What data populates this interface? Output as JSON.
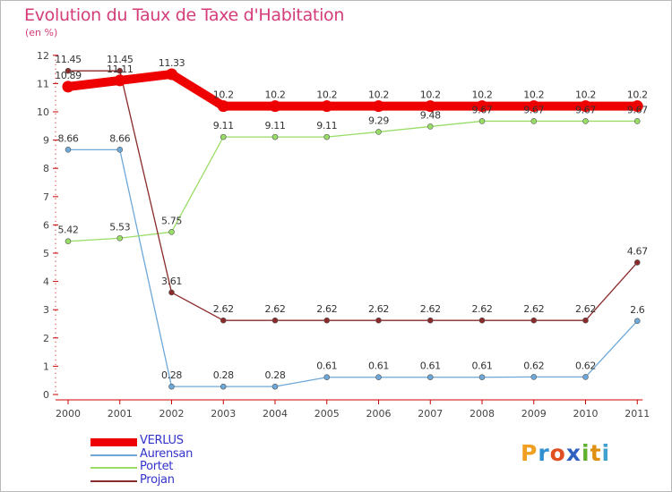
{
  "title": "Evolution du Taux de Taxe d'Habitation",
  "unit_label": "(en %)",
  "brand": {
    "letters": [
      "P",
      "r",
      "o",
      "x",
      "i",
      "t",
      "i"
    ],
    "colors": [
      "#f0a020",
      "#3090d0",
      "#e05020",
      "#3060c0",
      "#60b030",
      "#e09010",
      "#40a0d0"
    ]
  },
  "chart_data": {
    "type": "line",
    "title": "Evolution du Taux de Taxe d'Habitation",
    "ylabel": "(en %)",
    "xlabel": "",
    "x": [
      "2000",
      "2001",
      "2002",
      "2003",
      "2004",
      "2005",
      "2006",
      "2007",
      "2008",
      "2009",
      "2010",
      "2011"
    ],
    "ylim": [
      0,
      12
    ],
    "yticks": [
      "0",
      "1",
      "2",
      "3",
      "4",
      "5",
      "6",
      "7",
      "8",
      "9",
      "10",
      "11",
      "12"
    ],
    "grid": false,
    "legend_position": "bottom-left",
    "series": [
      {
        "name": "VERLUS",
        "color": "#ee0000",
        "values": [
          10.89,
          11.11,
          11.33,
          10.2,
          10.2,
          10.2,
          10.2,
          10.2,
          10.2,
          10.2,
          10.2,
          10.2
        ],
        "labels": [
          "10.89",
          "11.11",
          "11.33",
          "10.2",
          "10.2",
          "10.2",
          "10.2",
          "10.2",
          "10.2",
          "10.2",
          "10.2",
          "10.2"
        ]
      },
      {
        "name": "Aurensan",
        "color": "#6ea8d8",
        "values": [
          8.66,
          8.66,
          0.28,
          0.28,
          0.28,
          0.61,
          0.61,
          0.61,
          0.61,
          0.62,
          0.62,
          2.6
        ],
        "labels": [
          "8.66",
          "8.66",
          "0.28",
          "0.28",
          "0.28",
          "0.61",
          "0.61",
          "0.61",
          "0.61",
          "0.62",
          "0.62",
          "2.6"
        ]
      },
      {
        "name": "Portet",
        "color": "#99dd66",
        "values": [
          5.42,
          5.53,
          5.75,
          9.11,
          9.11,
          9.11,
          9.29,
          9.48,
          9.67,
          9.67,
          9.67,
          9.67
        ],
        "labels": [
          "5.42",
          "5.53",
          "5.75",
          "9.11",
          "9.11",
          "9.11",
          "9.29",
          "9.48",
          "9.67",
          "9.67",
          "9.67",
          "9.67"
        ]
      },
      {
        "name": "Projan",
        "color": "#8b2a2a",
        "values": [
          11.45,
          11.45,
          3.61,
          2.62,
          2.62,
          2.62,
          2.62,
          2.62,
          2.62,
          2.62,
          2.62,
          4.67
        ],
        "labels": [
          "11.45",
          "11.45",
          "3.61",
          "2.62",
          "2.62",
          "2.62",
          "2.62",
          "2.62",
          "2.62",
          "2.62",
          "2.62",
          "4.67"
        ]
      }
    ]
  }
}
